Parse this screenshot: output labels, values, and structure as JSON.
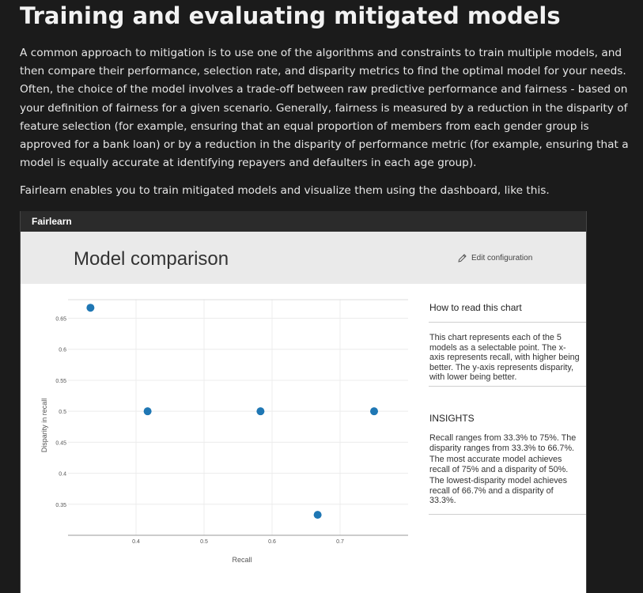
{
  "article": {
    "title": "Training and evaluating mitigated models",
    "paragraph1": "A common approach to mitigation is to use one of the algorithms and constraints to train multiple models, and then compare their performance, selection rate, and disparity metrics to find the optimal model for your needs. Often, the choice of the model involves a trade-off between raw predictive performance and fairness - based on your definition of fairness for a given scenario. Generally, fairness is measured by a reduction in the disparity of feature selection (for example, ensuring that an equal proportion of members from each gender group is approved for a bank loan) or by a reduction in the disparity of performance metric (for example, ensuring that a model is equally accurate at identifying repayers and defaulters in each age group).",
    "paragraph2": "Fairlearn enables you to train mitigated models and visualize them using the dashboard, like this."
  },
  "dashboard": {
    "brand": "Fairlearn",
    "title": "Model comparison",
    "edit_label": "Edit configuration",
    "how_to_read": {
      "heading": "How to read this chart",
      "text": "This chart represents each of the 5 models as a selectable point. The x-axis represents recall, with higher being better. The y-axis represents disparity, with lower being better."
    },
    "insights": {
      "heading": "INSIGHTS",
      "items": [
        "Recall ranges from 33.3% to 75%. The disparity ranges from 33.3% to 66.7%.",
        "The most accurate model achieves recall of 75% and a disparity of 50%.",
        "The lowest-disparity model achieves recall of 66.7% and a disparity of 33.3%."
      ]
    }
  },
  "chart_data": {
    "type": "scatter",
    "title": "",
    "xlabel": "Recall",
    "ylabel": "Disparity in recall",
    "xlim": [
      0.3,
      0.8
    ],
    "ylim": [
      0.3,
      0.68
    ],
    "x_ticks": [
      "0.4",
      "0.5",
      "0.6",
      "0.7"
    ],
    "y_ticks": [
      "0.35",
      "0.4",
      "0.45",
      "0.5",
      "0.55",
      "0.6",
      "0.65"
    ],
    "grid": true,
    "point_color": "#1f77b4",
    "points": [
      {
        "x": 0.333,
        "y": 0.667
      },
      {
        "x": 0.417,
        "y": 0.5
      },
      {
        "x": 0.583,
        "y": 0.5
      },
      {
        "x": 0.667,
        "y": 0.333
      },
      {
        "x": 0.75,
        "y": 0.5
      }
    ]
  }
}
